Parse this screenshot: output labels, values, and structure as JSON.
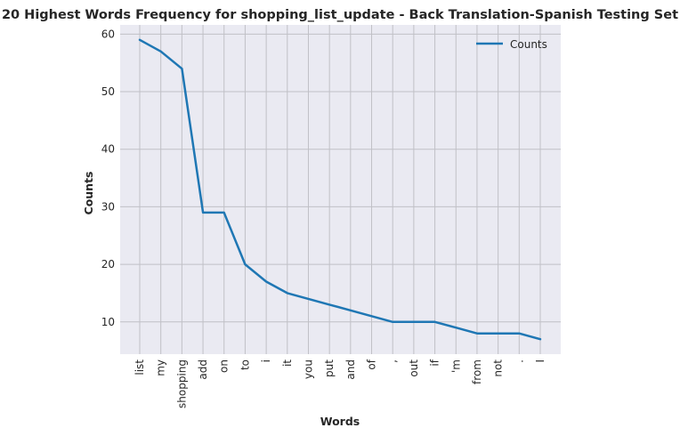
{
  "chart_data": {
    "type": "line",
    "title": "20 Highest Words Frequency for shopping_list_update - Back Translation-Spanish Testing Set",
    "xlabel": "Words",
    "ylabel": "Counts",
    "categories": [
      "list",
      "my",
      "shopping",
      "add",
      "on",
      "to",
      "i",
      "it",
      "you",
      "put",
      "and",
      "of",
      ",",
      "out",
      "if",
      "'m",
      "from",
      "not",
      ".",
      "I"
    ],
    "series": [
      {
        "name": "Counts",
        "color": "#1f77b4",
        "values": [
          59,
          57,
          54,
          29,
          29,
          20,
          17,
          15,
          14,
          13,
          12,
          11,
          10,
          10,
          10,
          9,
          8,
          8,
          8,
          7
        ]
      }
    ],
    "ylim": [
      4.4,
      61.6
    ],
    "yticks": [
      10,
      20,
      30,
      40,
      50,
      60
    ],
    "grid": true,
    "legend_position": "upper right",
    "colors": {
      "plot_background": "#eaeaf2",
      "grid": "#c0c0c6",
      "line": "#1f77b4",
      "text": "#262626"
    }
  }
}
